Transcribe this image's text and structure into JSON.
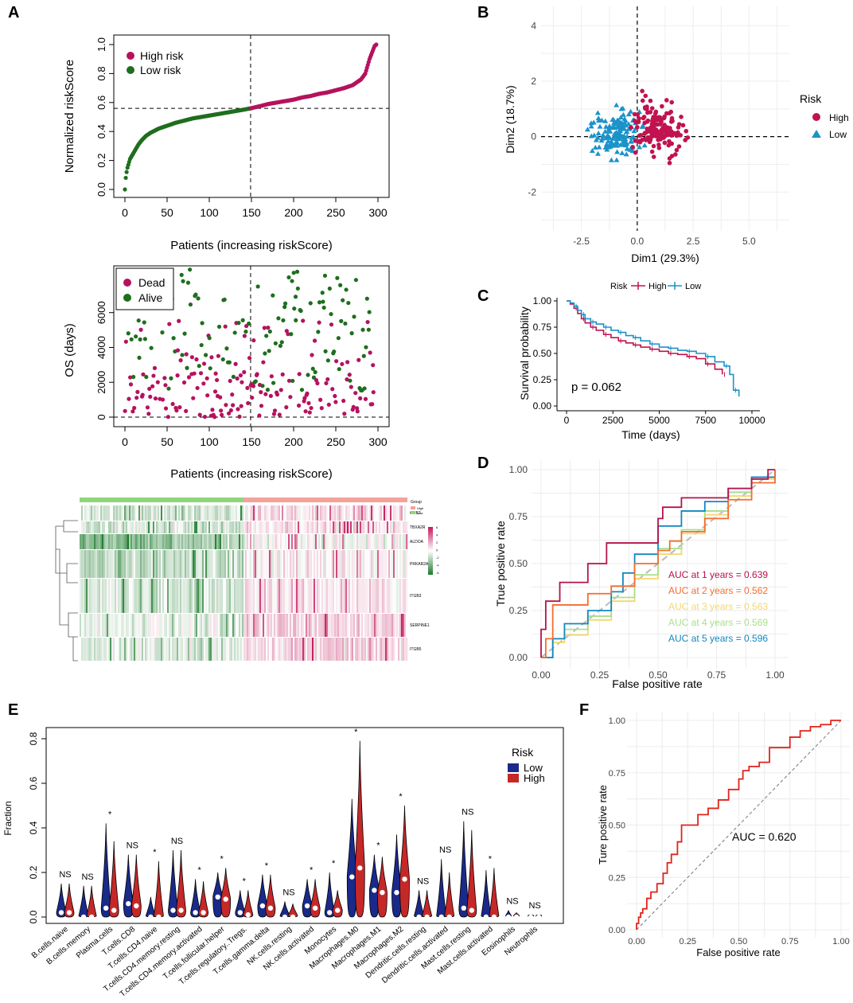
{
  "panel_labels": {
    "a": "A",
    "b": "B",
    "c": "C",
    "d": "D",
    "e": "E",
    "f": "F"
  },
  "colors": {
    "high": "#b5125e",
    "low_a": "#1e6e1e",
    "alive": "#1e6e1e",
    "dead": "#b5125e",
    "pca_high": "#c0134f",
    "pca_low": "#1b93c9",
    "km_high": "#c0134f",
    "km_low": "#1b93c9",
    "roc1": "#b5124e",
    "roc2": "#f46d2e",
    "roc3": "#f5d76e",
    "roc4": "#a8e08c",
    "roc5": "#1287c2",
    "violin_low": "#1a2a8a",
    "violin_high": "#c62828",
    "roc_f": "#e0241c",
    "heat_low_group": "#8fd67a",
    "heat_high_group": "#f4a29a"
  },
  "chart_data": [
    {
      "id": "risk-curve",
      "type": "scatter",
      "xlabel": "Patients (increasing riskScore)",
      "ylabel": "Normalized riskScore",
      "xlim": [
        0,
        300
      ],
      "ylim": [
        0,
        1
      ],
      "xticks": [
        "0",
        "50",
        "100",
        "150",
        "200",
        "250",
        "300"
      ],
      "yticks": [
        "0.0",
        "0.2",
        "0.4",
        "0.6",
        "0.8",
        "1.0"
      ],
      "cutoff_x": 149,
      "cutoff_y": 0.56,
      "legend": [
        "High risk",
        "Low risk"
      ],
      "curve_x": [
        0,
        1,
        2,
        3,
        4,
        5,
        6,
        8,
        10,
        13,
        16,
        20,
        25,
        30,
        40,
        50,
        60,
        70,
        80,
        90,
        100,
        110,
        120,
        130,
        140,
        149,
        160,
        170,
        180,
        190,
        200,
        210,
        220,
        230,
        240,
        250,
        260,
        270,
        280,
        285,
        288,
        290,
        292,
        294,
        296,
        298
      ],
      "curve_y": [
        0.0,
        0.08,
        0.12,
        0.15,
        0.17,
        0.19,
        0.21,
        0.23,
        0.25,
        0.28,
        0.31,
        0.34,
        0.37,
        0.39,
        0.42,
        0.44,
        0.46,
        0.475,
        0.49,
        0.5,
        0.51,
        0.52,
        0.53,
        0.54,
        0.55,
        0.56,
        0.575,
        0.59,
        0.6,
        0.61,
        0.62,
        0.635,
        0.645,
        0.66,
        0.67,
        0.685,
        0.7,
        0.72,
        0.76,
        0.8,
        0.86,
        0.9,
        0.93,
        0.96,
        0.99,
        1.0
      ]
    },
    {
      "id": "survival-status",
      "type": "scatter",
      "xlabel": "Patients (increasing riskScore)",
      "ylabel": "OS (days)",
      "xlim": [
        0,
        300
      ],
      "ylim": [
        0,
        8500
      ],
      "xticks": [
        "0",
        "50",
        "100",
        "150",
        "200",
        "250",
        "300"
      ],
      "yticks": [
        "0",
        "2000",
        "4000",
        "6000"
      ],
      "cutoff_x": 149,
      "legend": [
        "Dead",
        "Alive"
      ]
    },
    {
      "id": "heatmap",
      "type": "heatmap",
      "genes": [
        "GNB2",
        "TBXA2R",
        "ALDOA",
        "PRKAR2A",
        "ITGB3",
        "SERPINE1",
        "ITGB5"
      ],
      "group_legend_title": "Group",
      "group_legend": [
        "High",
        "Low"
      ],
      "scale_ticks": [
        "6",
        "4",
        "2",
        "0",
        "-2",
        "-4",
        "-6"
      ]
    },
    {
      "id": "pca",
      "type": "scatter",
      "xlabel": "Dim1 (29.3%)",
      "ylabel": "Dim2 (18.7%)",
      "xlim": [
        -4.3,
        6.8
      ],
      "ylim": [
        -3.4,
        4.7
      ],
      "xticks": [
        "-2.5",
        "0.0",
        "2.5",
        "5.0"
      ],
      "xtick_values": [
        -2.5,
        0,
        2.5,
        5
      ],
      "yticks": [
        "4",
        "2",
        "0",
        "-2"
      ],
      "ytick_values": [
        4,
        2,
        0,
        -2
      ],
      "legend_title": "Risk",
      "legend": [
        "High",
        "Low"
      ]
    },
    {
      "id": "km",
      "type": "line",
      "xlabel": "Time (days)",
      "ylabel": "Survival probability",
      "xlim": [
        0,
        10000
      ],
      "ylim": [
        0,
        1
      ],
      "xticks": [
        "0",
        "2500",
        "5000",
        "7500",
        "10000"
      ],
      "yticks": [
        "0.00",
        "0.25",
        "0.50",
        "0.75",
        "1.00"
      ],
      "legend_title": "Risk",
      "legend": [
        "High",
        "Low"
      ],
      "pvalue": "p = 0.062",
      "series": [
        {
          "name": "High",
          "x": [
            0,
            200,
            400,
            600,
            800,
            1000,
            1300,
            1600,
            2000,
            2400,
            2800,
            3200,
            3600,
            4000,
            4500,
            5000,
            5500,
            6000,
            6500,
            7000,
            7500,
            8000,
            8400
          ],
          "y": [
            1.0,
            0.97,
            0.93,
            0.88,
            0.83,
            0.79,
            0.75,
            0.72,
            0.68,
            0.65,
            0.62,
            0.6,
            0.58,
            0.56,
            0.54,
            0.52,
            0.5,
            0.49,
            0.47,
            0.45,
            0.4,
            0.35,
            0.3
          ]
        },
        {
          "name": "Low",
          "x": [
            0,
            200,
            400,
            600,
            800,
            1000,
            1300,
            1600,
            2000,
            2400,
            2800,
            3200,
            3600,
            4000,
            4500,
            5000,
            5500,
            6000,
            6500,
            7000,
            7500,
            8000,
            8500,
            8800,
            9000,
            9300
          ],
          "y": [
            1.0,
            0.98,
            0.95,
            0.91,
            0.87,
            0.83,
            0.8,
            0.78,
            0.75,
            0.72,
            0.7,
            0.67,
            0.65,
            0.62,
            0.59,
            0.56,
            0.55,
            0.53,
            0.52,
            0.5,
            0.47,
            0.42,
            0.38,
            0.3,
            0.15,
            0.09
          ]
        }
      ]
    },
    {
      "id": "time-roc",
      "type": "line",
      "xlabel": "False positive rate",
      "ylabel": "True positive rate",
      "xlim": [
        0,
        1
      ],
      "ylim": [
        0,
        1
      ],
      "xticks": [
        "0.00",
        "0.25",
        "0.50",
        "0.75",
        "1.00"
      ],
      "yticks": [
        "0.00",
        "0.25",
        "0.50",
        "0.75",
        "1.00"
      ],
      "auc_labels": [
        "AUC at 1 years = 0.639",
        "AUC at 2 years = 0.562",
        "AUC at 3 years = 0.563",
        "AUC at 4 years = 0.569",
        "AUC at 5 years = 0.596"
      ],
      "series": [
        {
          "name": "1 year",
          "x": [
            0,
            0,
            0.02,
            0.02,
            0.08,
            0.08,
            0.2,
            0.2,
            0.28,
            0.28,
            0.35,
            0.5,
            0.52,
            0.6,
            0.66,
            0.7,
            0.8,
            0.9,
            0.97,
            1
          ],
          "y": [
            0,
            0.15,
            0.15,
            0.3,
            0.3,
            0.4,
            0.4,
            0.5,
            0.5,
            0.61,
            0.61,
            0.74,
            0.8,
            0.85,
            0.85,
            0.85,
            0.9,
            0.95,
            1,
            1
          ]
        },
        {
          "name": "2 years",
          "x": [
            0,
            0.02,
            0.05,
            0.1,
            0.2,
            0.3,
            0.4,
            0.5,
            0.55,
            0.6,
            0.7,
            0.8,
            0.9,
            1
          ],
          "y": [
            0,
            0.1,
            0.28,
            0.28,
            0.34,
            0.38,
            0.5,
            0.57,
            0.62,
            0.67,
            0.74,
            0.84,
            0.93,
            1
          ]
        },
        {
          "name": "3 years",
          "x": [
            0,
            0.05,
            0.1,
            0.2,
            0.3,
            0.4,
            0.5,
            0.6,
            0.7,
            0.8,
            0.9,
            1
          ],
          "y": [
            0,
            0.08,
            0.12,
            0.2,
            0.3,
            0.42,
            0.55,
            0.66,
            0.76,
            0.86,
            0.95,
            1
          ]
        },
        {
          "name": "4 years",
          "x": [
            0,
            0.05,
            0.1,
            0.2,
            0.3,
            0.4,
            0.5,
            0.6,
            0.7,
            0.8,
            0.9,
            1
          ],
          "y": [
            0,
            0.1,
            0.15,
            0.22,
            0.32,
            0.44,
            0.58,
            0.68,
            0.78,
            0.88,
            0.96,
            1
          ]
        },
        {
          "name": "5 years",
          "x": [
            0,
            0.05,
            0.1,
            0.2,
            0.3,
            0.35,
            0.4,
            0.5,
            0.6,
            0.7,
            0.8,
            0.9,
            1
          ],
          "y": [
            0,
            0.1,
            0.18,
            0.25,
            0.35,
            0.45,
            0.55,
            0.7,
            0.78,
            0.83,
            0.9,
            0.96,
            1
          ]
        }
      ]
    },
    {
      "id": "immune-violin",
      "type": "violin",
      "ylabel": "Fraction",
      "ylim": [
        0,
        0.85
      ],
      "yticks": [
        "0.0",
        "0.2",
        "0.4",
        "0.6",
        "0.8"
      ],
      "ytick_values": [
        0,
        0.2,
        0.4,
        0.6,
        0.8
      ],
      "legend_title": "Risk",
      "legend": [
        "Low",
        "High"
      ],
      "categories": [
        "B.cells.naive",
        "B.cells.memory",
        "Plasma.cells",
        "T.cells.CD8",
        "T.cells.CD4.naive",
        "T.cells.CD4.memory.resting",
        "T.cells.CD4.memory.activated",
        "T.cells.follicular.helper",
        "T.cells.regulatory..Tregs.",
        "T.cells.gamma.delta",
        "NK.cells.resting",
        "NK.cells.activated",
        "Monocytes",
        "Macrophages.M0",
        "Macrophages.M1",
        "Macrophages.M2",
        "Dendritic.cells.resting",
        "Dendritic.cells.activated",
        "Mast.cells.resting",
        "Mast.cells.activated",
        "Eosinophils",
        "Neutrophils"
      ],
      "significance": [
        "NS",
        "NS",
        "*",
        "NS",
        "*",
        "NS",
        "*",
        "*",
        "*",
        "*",
        "NS",
        "*",
        "*",
        "*",
        "*",
        "*",
        "NS",
        "NS",
        "NS",
        "*",
        "NS",
        "NS"
      ],
      "max_low": [
        0.15,
        0.14,
        0.42,
        0.28,
        0.09,
        0.3,
        0.17,
        0.2,
        0.12,
        0.19,
        0.07,
        0.17,
        0.2,
        0.53,
        0.28,
        0.37,
        0.12,
        0.26,
        0.43,
        0.21,
        0.03,
        0.01
      ],
      "max_high": [
        0.15,
        0.14,
        0.34,
        0.28,
        0.25,
        0.3,
        0.16,
        0.22,
        0.12,
        0.19,
        0.06,
        0.17,
        0.12,
        0.79,
        0.27,
        0.5,
        0.12,
        0.2,
        0.39,
        0.22,
        0.02,
        0.01
      ],
      "median_low": [
        0.02,
        0.0,
        0.04,
        0.06,
        0.0,
        0.03,
        0.02,
        0.09,
        0.02,
        0.05,
        0.0,
        0.05,
        0.02,
        0.18,
        0.12,
        0.11,
        0.0,
        0.0,
        0.04,
        0.0,
        0.0,
        0.0
      ],
      "median_high": [
        0.02,
        0.0,
        0.03,
        0.05,
        0.0,
        0.03,
        0.02,
        0.08,
        0.01,
        0.04,
        0.0,
        0.04,
        0.03,
        0.22,
        0.11,
        0.17,
        0.0,
        0.0,
        0.03,
        0.0,
        0.0,
        0.0
      ]
    },
    {
      "id": "roc-f",
      "type": "line",
      "xlabel": "False positive rate",
      "ylabel": "Ture positive rate",
      "xlim": [
        0,
        1
      ],
      "ylim": [
        0,
        1
      ],
      "xticks": [
        "0.00",
        "0.25",
        "0.50",
        "0.75",
        "1.00"
      ],
      "yticks": [
        "0.00",
        "0.25",
        "0.50",
        "0.75",
        "1.00"
      ],
      "auc_label": "AUC = 0.620",
      "x": [
        0,
        0.01,
        0.02,
        0.03,
        0.05,
        0.07,
        0.1,
        0.13,
        0.15,
        0.17,
        0.2,
        0.22,
        0.25,
        0.3,
        0.35,
        0.4,
        0.45,
        0.5,
        0.52,
        0.55,
        0.6,
        0.65,
        0.7,
        0.72,
        0.75,
        0.8,
        0.85,
        0.9,
        0.95,
        0.97,
        1
      ],
      "y": [
        0,
        0.03,
        0.06,
        0.08,
        0.1,
        0.15,
        0.18,
        0.22,
        0.27,
        0.32,
        0.36,
        0.42,
        0.5,
        0.5,
        0.55,
        0.58,
        0.62,
        0.67,
        0.72,
        0.76,
        0.78,
        0.8,
        0.87,
        0.87,
        0.87,
        0.92,
        0.95,
        0.97,
        0.98,
        1,
        1
      ]
    }
  ]
}
